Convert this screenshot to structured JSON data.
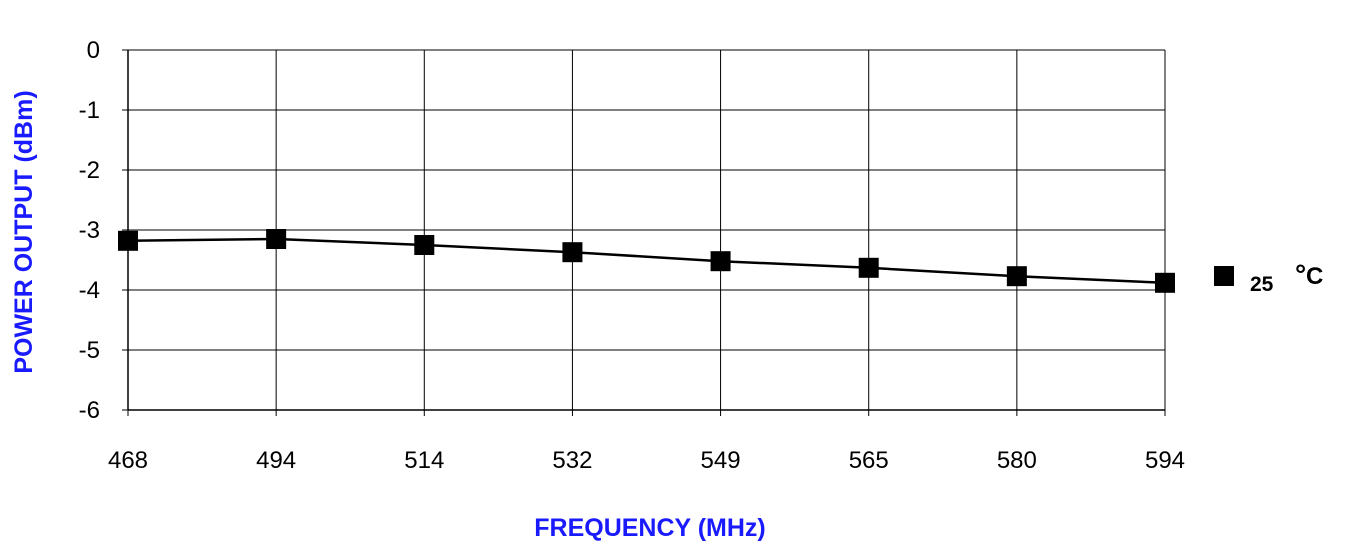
{
  "chart_data": {
    "type": "line",
    "title": "",
    "xlabel": "FREQUENCY (MHz)",
    "ylabel": "POWER OUTPUT (dBm)",
    "categories": [
      "468",
      "494",
      "514",
      "532",
      "549",
      "565",
      "580",
      "594"
    ],
    "ylim": [
      -6,
      0
    ],
    "yticks": [
      "0",
      "-1",
      "-2",
      "-3",
      "-4",
      "-5",
      "-6"
    ],
    "grid": true,
    "legend_position": "right",
    "series": [
      {
        "name": "25 °C",
        "marker": "square",
        "values": [
          -3.18,
          -3.15,
          -3.25,
          -3.37,
          -3.52,
          -3.63,
          -3.77,
          -3.88
        ]
      }
    ],
    "legend": {
      "value": "25",
      "degree": "°",
      "unit": "C"
    },
    "colors": {
      "axis_title": "#1a1aff",
      "line": "#000000",
      "grid": "#000000"
    }
  }
}
